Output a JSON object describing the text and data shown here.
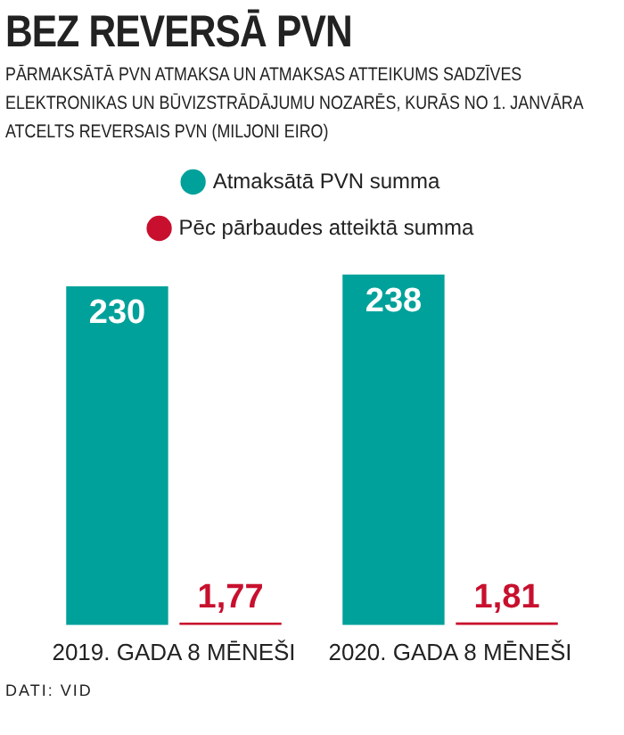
{
  "chart_data": {
    "type": "bar",
    "title": "BEZ REVERSĀ PVN",
    "subtitle": "PĀRMAKSĀTĀ PVN ATMAKSA UN ATMAKSAS ATTEIKUMS SADZĪVES ELEKTRONIKAS UN BŪVIZSTRĀDĀJUMU NOZARĒS, KURĀS NO 1. JANVĀRA ATCELTS REVERSAIS PVN (MILJONI EIRO)",
    "categories": [
      "2019. GADA 8 MĒNEŠI",
      "2020. GADA 8 MĒNEŠI"
    ],
    "series": [
      {
        "name": "Atmaksātā PVN summa",
        "color": "#00a19a",
        "values": [
          230,
          238
        ],
        "value_labels": [
          "230",
          "238"
        ]
      },
      {
        "name": "Pēc pārbaudes atteiktā summa",
        "color": "#c8102e",
        "values": [
          1.77,
          1.81
        ],
        "value_labels": [
          "1,77",
          "1,81"
        ]
      }
    ],
    "legend": "top",
    "grid": false,
    "tick_labels": "x",
    "annotations": [
      "DATI: VID"
    ]
  }
}
